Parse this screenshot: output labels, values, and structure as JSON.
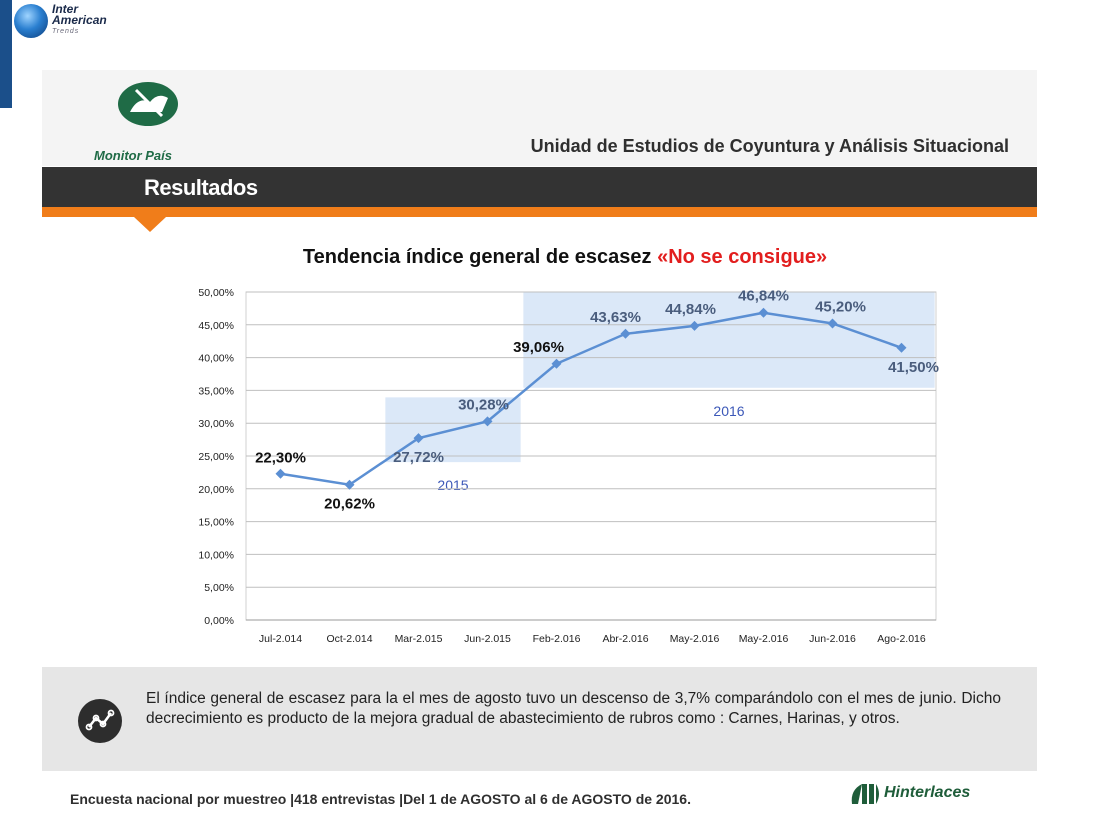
{
  "brand": {
    "line1": "Inter",
    "line2": "American",
    "line3": "Trends"
  },
  "header": {
    "logo_text": "Monitor País",
    "unit_title": "Unidad de Estudios de Coyuntura y Análisis Situacional",
    "section_title": "Resultados"
  },
  "colors": {
    "line": "#5b8fd3",
    "highlight": "#cfe0f6",
    "accent": "#f07d1a",
    "dark": "#333333",
    "title_red": "#e21e1e"
  },
  "chart_title": {
    "main": "Tendencia índice general de escasez ",
    "highlight": "«No se consigue»"
  },
  "chart_data": {
    "type": "line",
    "categories": [
      "Jul-2.014",
      "Oct-2.014",
      "Mar-2.015",
      "Jun-2.015",
      "Feb-2.016",
      "Abr-2.016",
      "May-2.016",
      "May-2.016",
      "Jun-2.016",
      "Ago-2.016"
    ],
    "values": [
      22.3,
      20.62,
      27.72,
      30.28,
      39.06,
      43.63,
      44.84,
      46.84,
      45.2,
      41.5
    ],
    "data_labels": [
      "22,30%",
      "20,62%",
      "27,72%",
      "30,28%",
      "39,06%",
      "43,63%",
      "44,84%",
      "46,84%",
      "45,20%",
      "41,50%"
    ],
    "ylim": [
      0,
      50
    ],
    "yticks": [
      "0,00%",
      "5,00%",
      "10,00%",
      "15,00%",
      "20,00%",
      "25,00%",
      "30,00%",
      "35,00%",
      "40,00%",
      "45,00%",
      "50,00%"
    ],
    "grid": true,
    "groups": [
      {
        "label": "2015",
        "from": 2,
        "to": 3
      },
      {
        "label": "2016",
        "from": 4,
        "to": 9
      }
    ]
  },
  "note": {
    "text": "El índice general de escasez para la el mes de agosto tuvo un descenso de 3,7% comparándolo con el mes de junio. Dicho decrecimiento es producto de la mejora gradual de abastecimiento de rubros como : Carnes, Harinas, y otros."
  },
  "footer": {
    "text": "Encuesta nacional por muestreo |418 entrevistas |Del 1 de AGOSTO  al 6 de AGOSTO de 2016.",
    "brand": "Hinterlaces"
  }
}
